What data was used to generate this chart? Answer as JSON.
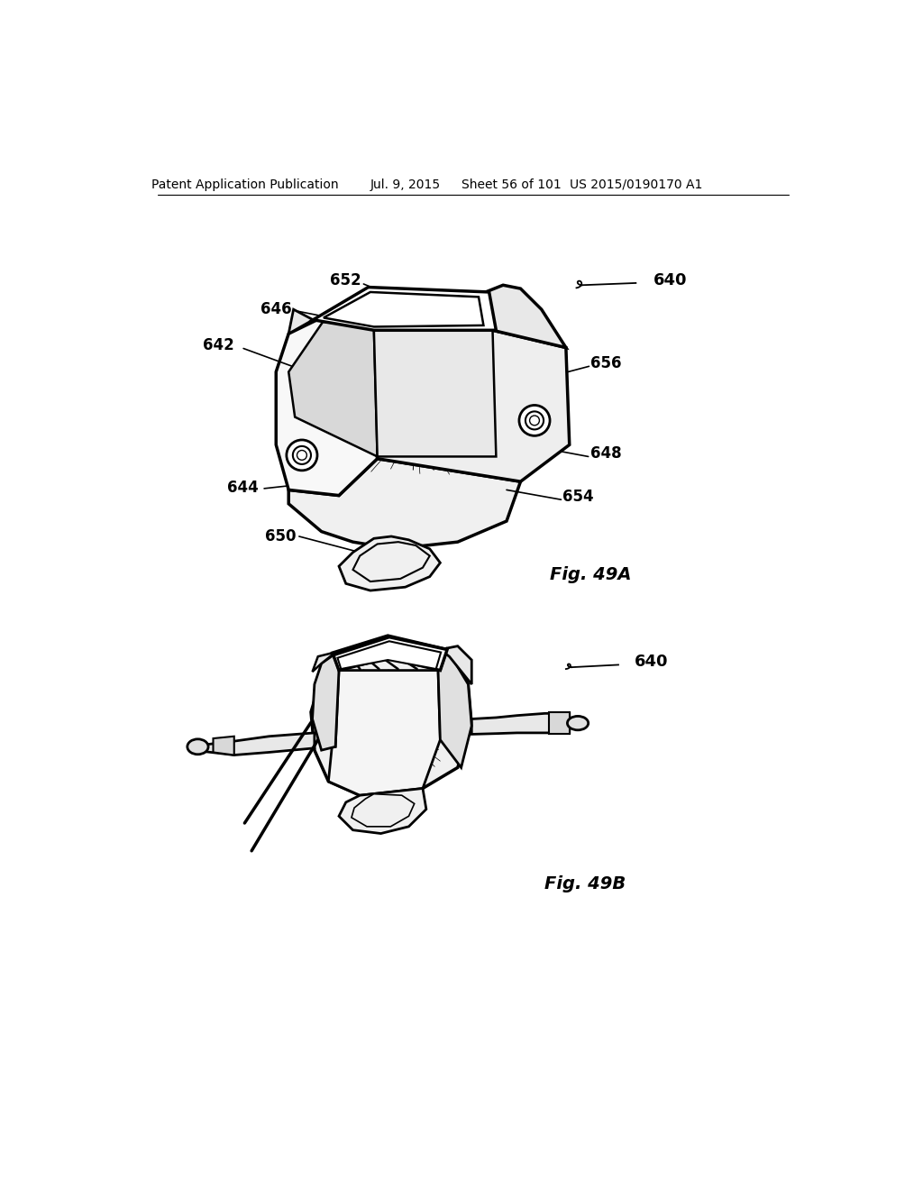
{
  "background_color": "#ffffff",
  "header_text": "Patent Application Publication",
  "header_date": "Jul. 9, 2015",
  "header_sheet": "Sheet 56 of 101",
  "header_patent": "US 2015/0190170 A1",
  "fig_a_label": "Fig. 49A",
  "fig_b_label": "Fig. 49B"
}
